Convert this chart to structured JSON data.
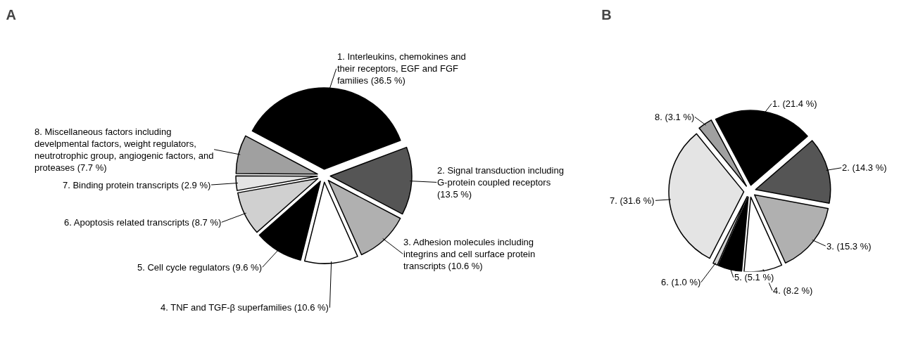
{
  "chart_data": [
    {
      "type": "pie",
      "title": "A",
      "categories": [
        "1. Interleukins, chemokines and their receptors, EGF and FGF families",
        "2. Signal transduction including G-protein coupled receptors",
        "3. Adhesion molecules including integrins and cell surface protein transcripts",
        "4. TNF and TGF-β superfamilies",
        "5. Cell cycle regulators",
        "6. Apoptosis related transcripts",
        "7. Binding protein transcripts",
        "8. Miscellaneous factors including develpmental factors, weight regulators, neutrotrophic group, angiogenic factors, and proteases"
      ],
      "values": [
        36.5,
        13.5,
        10.6,
        10.6,
        9.6,
        8.7,
        2.9,
        7.7
      ],
      "value_labels": [
        "(36.5 %)",
        "(13.5 %)",
        "(10.6 %)",
        "(10.6 %)",
        "(9.6 %)",
        "(8.7 %)",
        "(2.9 %)",
        "(7.7 %)"
      ],
      "colors": [
        "#000000",
        "#555555",
        "#b0b0b0",
        "#ffffff",
        "#000000",
        "#d0d0d0",
        "#e4e4e4",
        "#a0a0a0"
      ],
      "legend": false
    },
    {
      "type": "pie",
      "title": "B",
      "categories": [
        "1.",
        "2.",
        "3.",
        "4.",
        "5.",
        "6.",
        "7.",
        "8."
      ],
      "values": [
        21.4,
        14.3,
        15.3,
        8.2,
        5.1,
        1.0,
        31.6,
        3.1
      ],
      "value_labels": [
        "(21.4 %)",
        "(14.3 %)",
        "(15.3 %)",
        "(8.2 %)",
        "(5.1 %)",
        "(1.0 %)",
        "(31.6 %)",
        "(3.1 %)"
      ],
      "colors": [
        "#000000",
        "#555555",
        "#b0b0b0",
        "#ffffff",
        "#000000",
        "#d0d0d0",
        "#e4e4e4",
        "#a0a0a0"
      ],
      "legend": false
    }
  ]
}
